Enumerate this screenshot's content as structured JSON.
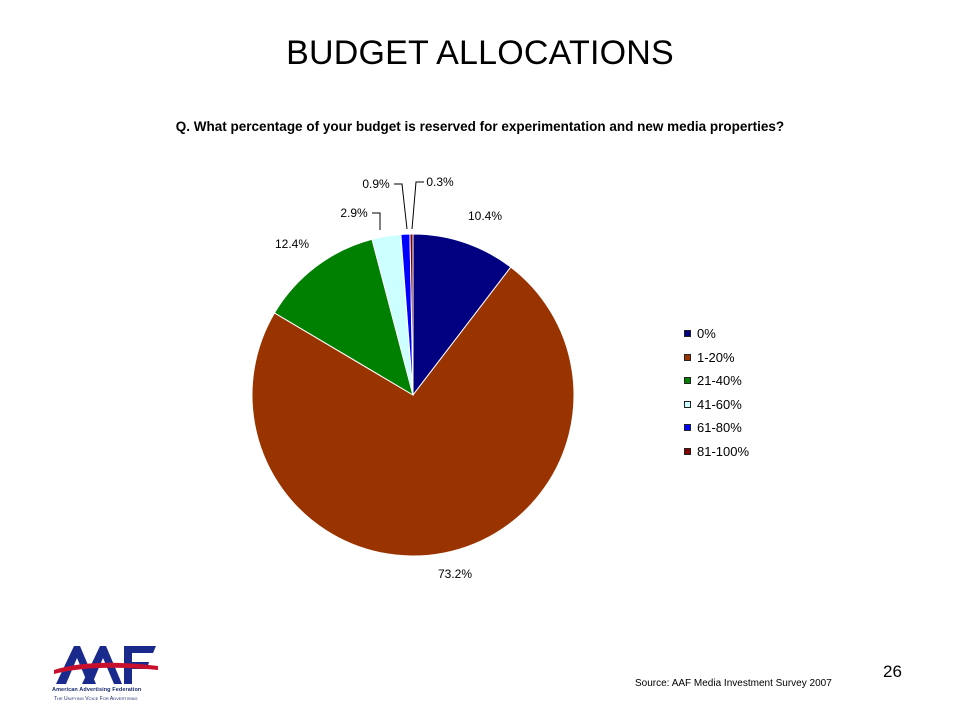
{
  "title": "BUDGET ALLOCATIONS",
  "question": "Q.  What percentage of your budget is reserved for experimentation and new media properties?",
  "source": "Source: AAF Media Investment Survey 2007",
  "page_number": "26",
  "logo": {
    "text": "AAF",
    "tagline1": "American Advertising Federation",
    "tagline2": "The Unifying Voice For Advertising"
  },
  "chart_data": {
    "type": "pie",
    "title": "",
    "categories": [
      "0%",
      "1-20%",
      "21-40%",
      "41-60%",
      "61-80%",
      "81-100%"
    ],
    "values": [
      10.4,
      73.2,
      12.4,
      2.9,
      0.9,
      0.3
    ],
    "data_labels": [
      "10.4%",
      "73.2%",
      "12.4%",
      "2.9%",
      "0.9%",
      "0.3%"
    ],
    "colors": [
      "#000080",
      "#993300",
      "#008000",
      "#ccffff",
      "#0000ff",
      "#800000"
    ],
    "start_angle": "12 o'clock",
    "direction": "clockwise",
    "legend_position": "right"
  }
}
